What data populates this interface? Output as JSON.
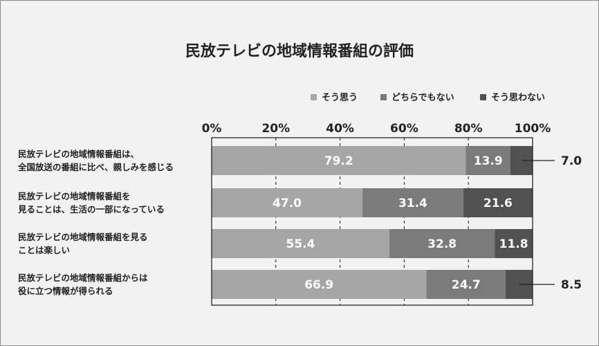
{
  "chart_data": {
    "type": "bar",
    "orientation": "horizontal",
    "stacked": true,
    "title": "民放テレビの地域情報番組の評価",
    "x_ticks": [
      "0%",
      "20%",
      "40%",
      "60%",
      "80%",
      "100%"
    ],
    "xlim": [
      0,
      100
    ],
    "legend_position": "top-right",
    "grid": "vertical dashed",
    "categories": [
      [
        "民放テレビの地域情報番組は、",
        "全国放送の番組に比べ、親しみを感じる"
      ],
      [
        "民放テレビの地域情報番組を",
        "見ることは、生活の一部になっている"
      ],
      [
        "民放テレビの地域情報番組を見る",
        "ことは楽しい"
      ],
      [
        "民放テレビの地域情報番組からは",
        "役に立つ情報が得られる"
      ]
    ],
    "series": [
      {
        "name": "そう思う",
        "color": "#a6a6a6",
        "values": [
          79.2,
          47.0,
          55.4,
          66.9
        ]
      },
      {
        "name": "どちらでもない",
        "color": "#7b7b7b",
        "values": [
          13.9,
          31.4,
          32.8,
          24.7
        ]
      },
      {
        "name": "そう思わない",
        "color": "#515151",
        "values": [
          7.0,
          21.6,
          11.8,
          8.5
        ]
      }
    ],
    "value_labels": [
      [
        "79.2",
        "13.9",
        "7.0"
      ],
      [
        "47.0",
        "31.4",
        "21.6"
      ],
      [
        "55.4",
        "32.8",
        "11.8"
      ],
      [
        "66.9",
        "24.7",
        "8.5"
      ]
    ],
    "outside_labels": [
      true,
      false,
      false,
      true
    ]
  }
}
